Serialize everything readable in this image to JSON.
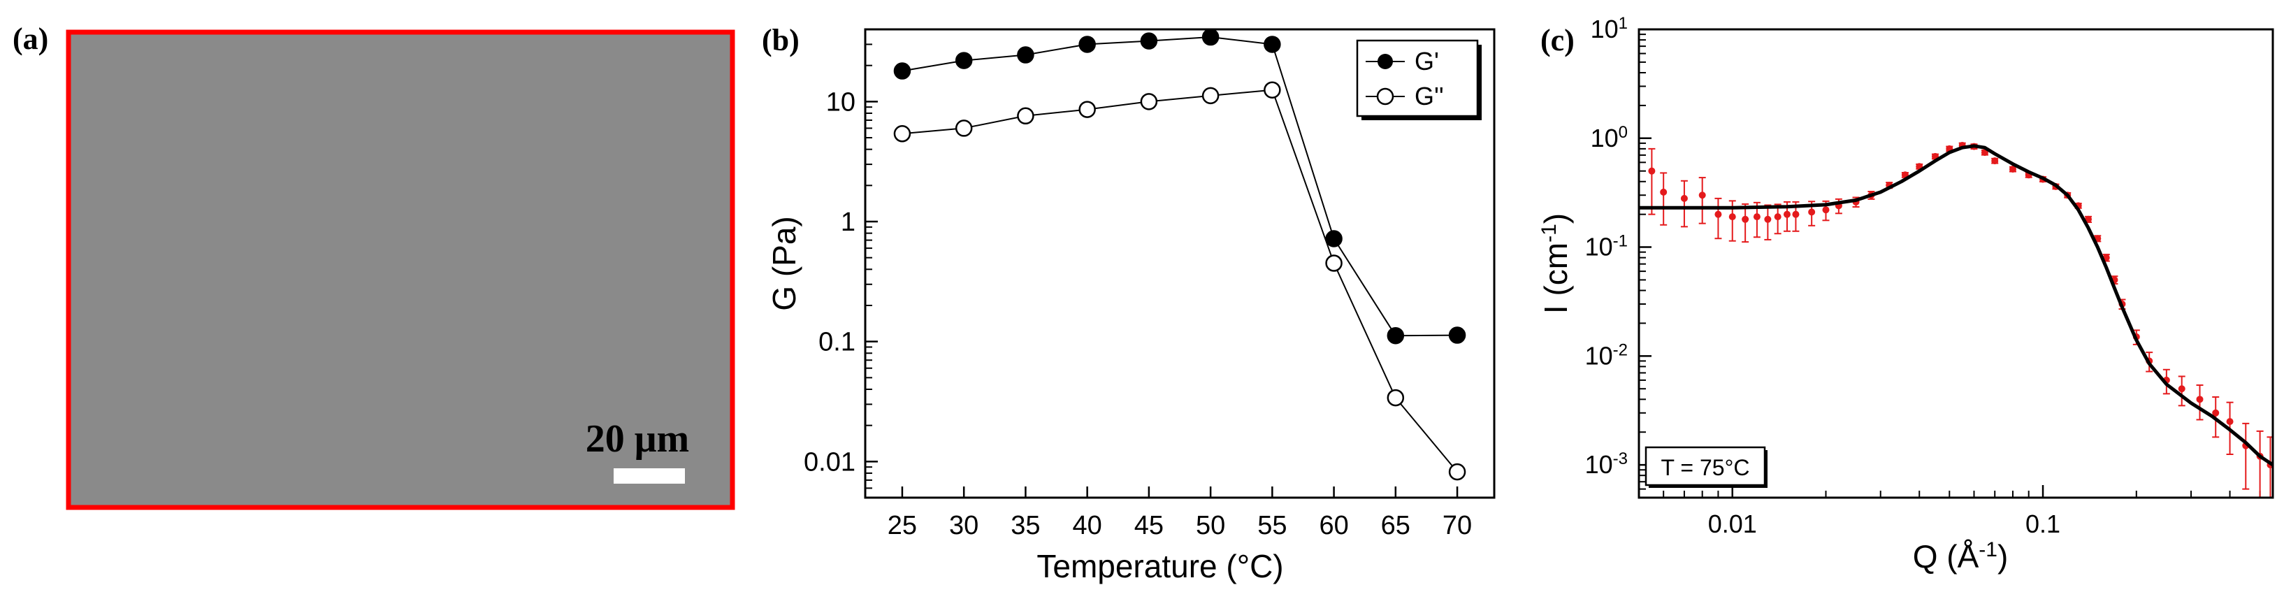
{
  "panel_a": {
    "label": "(a)",
    "scale_bar_label": "20 μm",
    "colors": {
      "frame": "#ff0000",
      "image_fill": "#8a8a8a",
      "scale_text": "#ffffff"
    }
  },
  "chart_data": [
    {
      "type": "line",
      "panel_label": "(b)",
      "xlabel": "Temperature (°C)",
      "ylabel": "G (Pa)",
      "yscale": "log",
      "xlim": [
        22,
        73
      ],
      "ylim": [
        0.005,
        40
      ],
      "x_ticks": [
        25,
        30,
        35,
        40,
        45,
        50,
        55,
        60,
        65,
        70
      ],
      "x_tick_labels": [
        "25",
        "30",
        "35",
        "40",
        "45",
        "50",
        "55",
        "60",
        "65",
        "70"
      ],
      "y_ticks": [
        0.01,
        0.1,
        1,
        10
      ],
      "y_tick_labels": [
        "0.01",
        "0.1",
        "1",
        "10"
      ],
      "legend_position": "top-right",
      "series": [
        {
          "name": "G'",
          "marker": "filled-circle",
          "x": [
            25,
            30,
            35,
            40,
            45,
            50,
            55,
            60,
            65,
            70
          ],
          "values": [
            18,
            22,
            24.5,
            30,
            32,
            34.5,
            30,
            0.72,
            0.112,
            0.113
          ]
        },
        {
          "name": "G''",
          "marker": "open-circle",
          "x": [
            25,
            30,
            35,
            40,
            45,
            50,
            55,
            60,
            65,
            70
          ],
          "values": [
            5.4,
            6.0,
            7.6,
            8.6,
            10.0,
            11.2,
            12.5,
            0.45,
            0.034,
            0.0082
          ]
        }
      ]
    },
    {
      "type": "scatter",
      "panel_label": "(c)",
      "xlabel": "Q (Å-1)",
      "ylabel": "I (cm-1)",
      "xlabel_parts": {
        "base": "Q (Å",
        "sup": "-1",
        "close": ")"
      },
      "ylabel_parts": {
        "base": "I (cm",
        "sup": "-1",
        "close": ")"
      },
      "xscale": "log",
      "yscale": "log",
      "xlim": [
        0.005,
        0.55
      ],
      "ylim": [
        0.0005,
        10
      ],
      "x_ticks": [
        0.01,
        0.1
      ],
      "x_tick_labels": [
        "0.01",
        "0.1"
      ],
      "y_ticks": [
        0.001,
        0.01,
        0.1,
        1,
        10
      ],
      "y_tick_labels": [
        {
          "base": "10",
          "sup": "-3"
        },
        {
          "base": "10",
          "sup": "-2"
        },
        {
          "base": "10",
          "sup": "-1"
        },
        {
          "base": "10",
          "sup": "0"
        },
        {
          "base": "10",
          "sup": "1"
        }
      ],
      "annotation": "T = 75°C",
      "colors": {
        "data": "#e41a1c",
        "fit": "#000000"
      },
      "series": [
        {
          "name": "data",
          "style": "red points with error bars",
          "x": [
            0.0055,
            0.006,
            0.007,
            0.008,
            0.009,
            0.01,
            0.011,
            0.012,
            0.013,
            0.014,
            0.015,
            0.016,
            0.018,
            0.02,
            0.022,
            0.025,
            0.028,
            0.032,
            0.036,
            0.04,
            0.045,
            0.05,
            0.055,
            0.06,
            0.065,
            0.07,
            0.08,
            0.09,
            0.1,
            0.11,
            0.12,
            0.13,
            0.14,
            0.15,
            0.16,
            0.17,
            0.18,
            0.2,
            0.22,
            0.25,
            0.28,
            0.32,
            0.36,
            0.4,
            0.45,
            0.5,
            0.54
          ],
          "values": [
            0.5,
            0.32,
            0.28,
            0.3,
            0.2,
            0.19,
            0.18,
            0.19,
            0.18,
            0.19,
            0.2,
            0.2,
            0.21,
            0.22,
            0.24,
            0.26,
            0.3,
            0.37,
            0.46,
            0.55,
            0.68,
            0.8,
            0.86,
            0.84,
            0.74,
            0.62,
            0.52,
            0.46,
            0.42,
            0.36,
            0.3,
            0.24,
            0.18,
            0.12,
            0.08,
            0.05,
            0.03,
            0.015,
            0.009,
            0.006,
            0.005,
            0.004,
            0.003,
            0.0025,
            0.0015,
            0.0012,
            0.001
          ],
          "error_frac": [
            0.6,
            0.5,
            0.45,
            0.45,
            0.4,
            0.4,
            0.38,
            0.35,
            0.35,
            0.3,
            0.3,
            0.3,
            0.25,
            0.2,
            0.15,
            0.1,
            0.08,
            0.06,
            0.05,
            0.05,
            0.05,
            0.05,
            0.05,
            0.05,
            0.05,
            0.05,
            0.05,
            0.05,
            0.05,
            0.05,
            0.05,
            0.05,
            0.06,
            0.06,
            0.07,
            0.08,
            0.1,
            0.15,
            0.2,
            0.25,
            0.3,
            0.35,
            0.4,
            0.5,
            0.6,
            0.7,
            0.8
          ]
        },
        {
          "name": "fit",
          "style": "black solid line",
          "x": [
            0.005,
            0.01,
            0.015,
            0.02,
            0.025,
            0.03,
            0.035,
            0.04,
            0.045,
            0.05,
            0.055,
            0.06,
            0.065,
            0.07,
            0.08,
            0.09,
            0.1,
            0.11,
            0.12,
            0.13,
            0.14,
            0.15,
            0.16,
            0.17,
            0.18,
            0.2,
            0.22,
            0.25,
            0.3,
            0.35,
            0.4,
            0.45,
            0.5,
            0.55
          ],
          "values": [
            0.23,
            0.23,
            0.235,
            0.245,
            0.27,
            0.32,
            0.4,
            0.5,
            0.62,
            0.74,
            0.82,
            0.85,
            0.82,
            0.72,
            0.58,
            0.49,
            0.43,
            0.37,
            0.3,
            0.22,
            0.15,
            0.1,
            0.065,
            0.042,
            0.028,
            0.014,
            0.0085,
            0.0055,
            0.0037,
            0.0028,
            0.0021,
            0.0016,
            0.0012,
            0.001
          ]
        }
      ]
    }
  ]
}
